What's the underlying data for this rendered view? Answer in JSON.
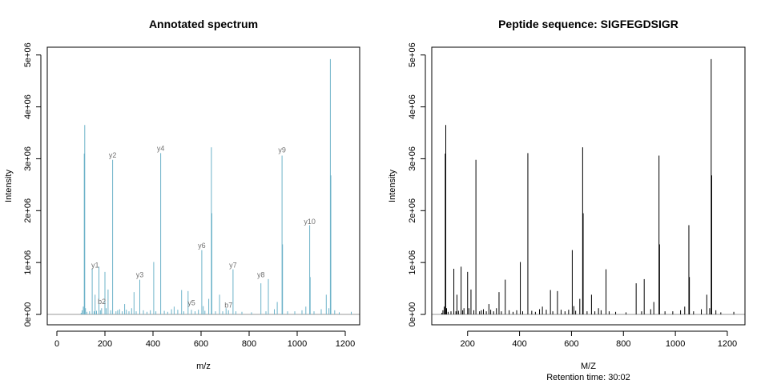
{
  "colors": {
    "annotated": "#6db3c9",
    "plain": "#000000",
    "label": "#707070",
    "axis": "#000000"
  },
  "chart_data": [
    {
      "type": "bar",
      "title": "Annotated spectrum",
      "subtitle": "",
      "xlabel": "m/z",
      "ylabel": "Intensity",
      "xlim": [
        -40,
        1260
      ],
      "ylim": [
        -200000,
        5150000
      ],
      "xticks": [
        0,
        200,
        400,
        600,
        800,
        1000,
        1200
      ],
      "xtick_labels": [
        "0",
        "200",
        "400",
        "600",
        "800",
        "1000",
        "1200"
      ],
      "yticks": [
        0,
        1000000,
        2000000,
        3000000,
        4000000,
        5000000
      ],
      "ytick_labels": [
        "0e+00",
        "1e+06",
        "2e+06",
        "3e+06",
        "4e+06",
        "5e+06"
      ],
      "baseline": true,
      "grid": false,
      "annotations": [
        {
          "text": "y1",
          "x": 159,
          "y": 900000
        },
        {
          "text": "b2",
          "x": 187,
          "y": 200000
        },
        {
          "text": "y2",
          "x": 232,
          "y": 3020000
        },
        {
          "text": "y3",
          "x": 345,
          "y": 720000
        },
        {
          "text": "y4",
          "x": 432,
          "y": 3150000
        },
        {
          "text": "y5",
          "x": 560,
          "y": 180000
        },
        {
          "text": "y6",
          "x": 603,
          "y": 1280000
        },
        {
          "text": "b7",
          "x": 714,
          "y": 130000
        },
        {
          "text": "y7",
          "x": 733,
          "y": 900000
        },
        {
          "text": "y8",
          "x": 849,
          "y": 720000
        },
        {
          "text": "y9",
          "x": 937,
          "y": 3120000
        },
        {
          "text": "y10",
          "x": 1052,
          "y": 1740000
        }
      ]
    },
    {
      "type": "bar",
      "title": "Peptide sequence: SIGFEGDSIGR",
      "subtitle": "Retention time: 30:02",
      "xlabel": "M/Z",
      "ylabel": "Intensity",
      "xlim": [
        62,
        1268
      ],
      "ylim": [
        -200000,
        5150000
      ],
      "xticks": [
        200,
        400,
        600,
        800,
        1000,
        1200
      ],
      "xtick_labels": [
        "200",
        "400",
        "600",
        "800",
        "1000",
        "1200"
      ],
      "yticks": [
        0,
        1000000,
        2000000,
        3000000,
        4000000,
        5000000
      ],
      "ytick_labels": [
        "0e+00",
        "1e+06",
        "2e+06",
        "3e+06",
        "4e+06",
        "5e+06"
      ],
      "baseline": true,
      "grid": false,
      "annotations": []
    }
  ],
  "peaks": [
    [
      101,
      30000
    ],
    [
      105,
      80000
    ],
    [
      110,
      150000
    ],
    [
      114,
      3100000
    ],
    [
      116,
      3650000
    ],
    [
      119,
      120000
    ],
    [
      125,
      50000
    ],
    [
      136,
      60000
    ],
    [
      147,
      880000
    ],
    [
      155,
      60000
    ],
    [
      159,
      380000
    ],
    [
      165,
      70000
    ],
    [
      175,
      920000
    ],
    [
      181,
      80000
    ],
    [
      186,
      120000
    ],
    [
      200,
      820000
    ],
    [
      205,
      120000
    ],
    [
      213,
      480000
    ],
    [
      224,
      80000
    ],
    [
      232,
      2980000
    ],
    [
      246,
      60000
    ],
    [
      253,
      80000
    ],
    [
      261,
      100000
    ],
    [
      272,
      60000
    ],
    [
      282,
      200000
    ],
    [
      289,
      90000
    ],
    [
      300,
      60000
    ],
    [
      311,
      120000
    ],
    [
      321,
      430000
    ],
    [
      330,
      60000
    ],
    [
      345,
      670000
    ],
    [
      360,
      80000
    ],
    [
      375,
      50000
    ],
    [
      389,
      80000
    ],
    [
      403,
      1010000
    ],
    [
      412,
      60000
    ],
    [
      432,
      3110000
    ],
    [
      447,
      70000
    ],
    [
      461,
      50000
    ],
    [
      477,
      100000
    ],
    [
      488,
      150000
    ],
    [
      503,
      90000
    ],
    [
      519,
      470000
    ],
    [
      528,
      60000
    ],
    [
      546,
      450000
    ],
    [
      560,
      90000
    ],
    [
      575,
      60000
    ],
    [
      589,
      90000
    ],
    [
      603,
      1240000
    ],
    [
      609,
      160000
    ],
    [
      616,
      70000
    ],
    [
      632,
      300000
    ],
    [
      643,
      3220000
    ],
    [
      645,
      1950000
    ],
    [
      660,
      60000
    ],
    [
      677,
      380000
    ],
    [
      690,
      60000
    ],
    [
      704,
      120000
    ],
    [
      714,
      80000
    ],
    [
      733,
      870000
    ],
    [
      745,
      60000
    ],
    [
      770,
      50000
    ],
    [
      810,
      40000
    ],
    [
      849,
      600000
    ],
    [
      870,
      60000
    ],
    [
      880,
      680000
    ],
    [
      905,
      100000
    ],
    [
      917,
      240000
    ],
    [
      937,
      3060000
    ],
    [
      939,
      1350000
    ],
    [
      960,
      60000
    ],
    [
      990,
      60000
    ],
    [
      1020,
      80000
    ],
    [
      1036,
      150000
    ],
    [
      1052,
      1720000
    ],
    [
      1054,
      720000
    ],
    [
      1070,
      60000
    ],
    [
      1100,
      100000
    ],
    [
      1121,
      380000
    ],
    [
      1132,
      120000
    ],
    [
      1138,
      4920000
    ],
    [
      1140,
      2680000
    ],
    [
      1156,
      80000
    ],
    [
      1175,
      40000
    ],
    [
      1225,
      50000
    ]
  ]
}
